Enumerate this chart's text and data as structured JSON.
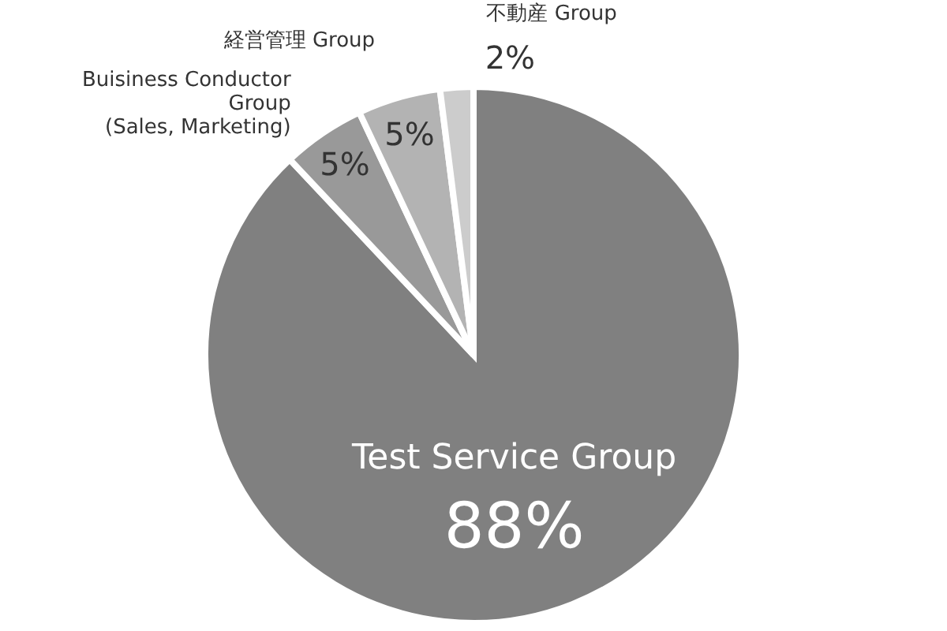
{
  "chart_data": {
    "type": "pie",
    "categories": [
      "Test Service Group",
      "Buisiness Conductor\nGroup\n(Sales, Marketing)",
      "経営管理 Group",
      "不動産 Group"
    ],
    "values": [
      88,
      5,
      5,
      2
    ],
    "value_labels": [
      "88%",
      "5%",
      "5%",
      "2%"
    ],
    "colors": [
      "#808080",
      "#999999",
      "#b3b3b3",
      "#cccccc"
    ]
  }
}
